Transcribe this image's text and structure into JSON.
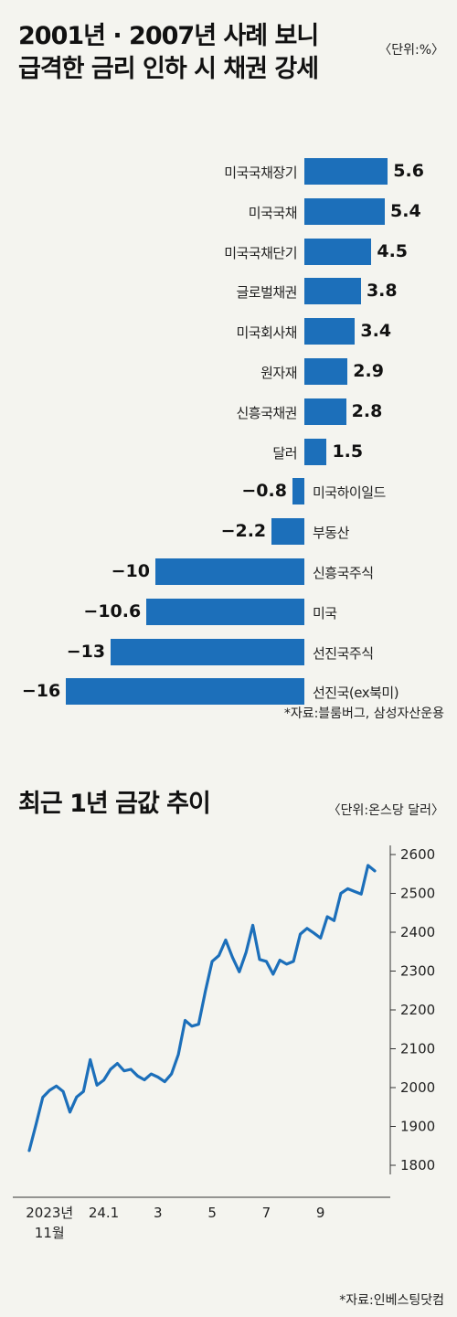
{
  "bar_section": {
    "title_line1": "2001년 · 2007년 사례 보니",
    "title_line2": "급격한 금리 인하 시 채권 강세",
    "unit": "〈단위:%〉",
    "source": "*자료:블룸버그, 삼성자산운용"
  },
  "line_section": {
    "title": "최근 1년 금값 추이",
    "unit": "〈단위:온스당 달러〉",
    "source": "*자료:인베스팅닷컴"
  },
  "colors": {
    "bar": "#1c6fba",
    "line": "#1c6fba",
    "background": "#f4f4ef"
  },
  "chart_data": [
    {
      "type": "bar",
      "orientation": "horizontal",
      "categories": [
        "미국국채장기",
        "미국국채",
        "미국국채단기",
        "글로벌채권",
        "미국회사채",
        "원자재",
        "신흥국채권",
        "달러",
        "미국하이일드",
        "부동산",
        "신흥국주식",
        "미국",
        "선진국주식",
        "선진국(ex북미)"
      ],
      "values": [
        5.6,
        5.4,
        4.5,
        3.8,
        3.4,
        2.9,
        2.8,
        1.5,
        -0.8,
        -2.2,
        -10,
        -10.6,
        -13,
        -16
      ],
      "labels": [
        "5.6",
        "5.4",
        "4.5",
        "3.8",
        "3.4",
        "2.9",
        "2.8",
        "1.5",
        "−0.8",
        "−2.2",
        "−10",
        "−10.6",
        "−13",
        "−16"
      ]
    },
    {
      "type": "line",
      "values": [
        1838,
        1905,
        1975,
        1993,
        2004,
        1990,
        1937,
        1976,
        1990,
        2072,
        2006,
        2019,
        2047,
        2062,
        2043,
        2047,
        2030,
        2020,
        2035,
        2027,
        2015,
        2035,
        2085,
        2173,
        2158,
        2163,
        2248,
        2325,
        2340,
        2380,
        2335,
        2298,
        2348,
        2418,
        2330,
        2325,
        2292,
        2328,
        2318,
        2325,
        2395,
        2410,
        2398,
        2385,
        2440,
        2430,
        2500,
        2512,
        2505,
        2498,
        2572,
        2558
      ],
      "x_ticks": [
        {
          "label": "2023년",
          "sub": "11월",
          "index": 3
        },
        {
          "label": "24.1",
          "index": 11
        },
        {
          "label": "3",
          "index": 19
        },
        {
          "label": "5",
          "index": 27
        },
        {
          "label": "7",
          "index": 35
        },
        {
          "label": "9",
          "index": 43
        }
      ],
      "y_ticks": [
        "1800",
        "1900",
        "2000",
        "2100",
        "2200",
        "2300",
        "2400",
        "2500",
        "2600"
      ],
      "ylim": [
        1800,
        2600
      ],
      "legend": "none"
    }
  ]
}
